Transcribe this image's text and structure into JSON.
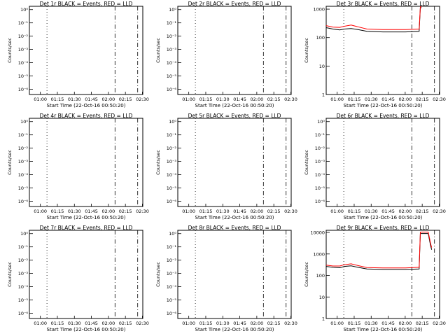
{
  "chart_data": [
    {
      "type": "line",
      "title": "Det 1r BLACK = Events, RED = LLD",
      "xlabel": "Start Time (22-Oct-16 00:50:20)",
      "ylabel": "Counts/sec",
      "x_tick_labels": [
        "01:00",
        "01:15",
        "01:30",
        "01:45",
        "02:00",
        "02:15",
        "02:30"
      ],
      "y_scale": "log",
      "y_tick_labels": [
        "10⁰",
        "10⁻¹",
        "10⁻²",
        "10⁻³",
        "10⁻⁴",
        "10⁻⁵",
        "10⁻⁶"
      ],
      "y_tick_values": [
        0,
        -1,
        -2,
        -3,
        -4,
        -5,
        -6
      ],
      "ylim": [
        -6.4,
        0.25
      ],
      "series": []
    },
    {
      "type": "line",
      "title": "Det 2r BLACK = Events, RED = LLD",
      "xlabel": "Start Time (22-Oct-16 00:50:20)",
      "ylabel": "Counts/sec",
      "x_tick_labels": [
        "01:00",
        "01:15",
        "01:30",
        "01:45",
        "02:00",
        "02:15",
        "02:30"
      ],
      "y_scale": "log",
      "y_tick_labels": [
        "10⁰",
        "10⁻¹",
        "10⁻²",
        "10⁻³",
        "10⁻⁴",
        "10⁻⁵",
        "10⁻⁶"
      ],
      "y_tick_values": [
        0,
        -1,
        -2,
        -3,
        -4,
        -5,
        -6
      ],
      "ylim": [
        -6.4,
        0.25
      ],
      "series": []
    },
    {
      "type": "line",
      "title": "Det 3r BLACK = Events, RED = LLD",
      "xlabel": "Start Time (22-Oct-16 00:50:20)",
      "ylabel": "Counts/sec",
      "x_tick_labels": [
        "01:00",
        "01:15",
        "01:30",
        "01:45",
        "02:00",
        "02:15",
        "02:30"
      ],
      "y_scale": "log",
      "y_tick_labels": [
        "1000",
        "100",
        "10",
        "1"
      ],
      "y_tick_values": [
        3,
        2,
        1,
        0
      ],
      "ylim": [
        0,
        3.1
      ],
      "series": [
        {
          "color": "#000000",
          "points": [
            [
              0,
              2.35
            ],
            [
              6,
              2.3
            ],
            [
              12,
              2.27
            ],
            [
              16,
              2.3
            ],
            [
              22,
              2.32
            ],
            [
              28,
              2.28
            ],
            [
              36,
              2.22
            ],
            [
              50,
              2.2
            ],
            [
              70,
              2.2
            ],
            [
              82,
              2.22
            ],
            [
              83,
              3.05
            ],
            [
              84,
              3.05
            ]
          ]
        },
        {
          "color": "#ff0000",
          "points": [
            [
              0,
              2.42
            ],
            [
              6,
              2.37
            ],
            [
              12,
              2.36
            ],
            [
              16,
              2.4
            ],
            [
              22,
              2.44
            ],
            [
              28,
              2.38
            ],
            [
              36,
              2.3
            ],
            [
              50,
              2.28
            ],
            [
              70,
              2.28
            ],
            [
              82,
              2.3
            ],
            [
              83,
              3.08
            ],
            [
              84,
              3.08
            ]
          ]
        }
      ]
    },
    {
      "type": "line",
      "title": "Det 4r BLACK = Events, RED = LLD",
      "xlabel": "Start Time (22-Oct-16 00:50:20)",
      "ylabel": "Counts/sec",
      "x_tick_labels": [
        "01:00",
        "01:15",
        "01:30",
        "01:45",
        "02:00",
        "02:15",
        "02:30"
      ],
      "y_scale": "log",
      "y_tick_labels": [
        "10⁰",
        "10⁻¹",
        "10⁻²",
        "10⁻³",
        "10⁻⁴",
        "10⁻⁵",
        "10⁻⁶"
      ],
      "y_tick_values": [
        0,
        -1,
        -2,
        -3,
        -4,
        -5,
        -6
      ],
      "ylim": [
        -6.4,
        0.25
      ],
      "series": []
    },
    {
      "type": "line",
      "title": "Det 5r BLACK = Events, RED = LLD",
      "xlabel": "Start Time (22-Oct-16 00:50:20)",
      "ylabel": "Counts/sec",
      "x_tick_labels": [
        "01:00",
        "01:15",
        "01:30",
        "01:45",
        "02:00",
        "02:15",
        "02:30"
      ],
      "y_scale": "log",
      "y_tick_labels": [
        "10⁰",
        "10⁻¹",
        "10⁻²",
        "10⁻³",
        "10⁻⁴",
        "10⁻⁵",
        "10⁻⁶"
      ],
      "y_tick_values": [
        0,
        -1,
        -2,
        -3,
        -4,
        -5,
        -6
      ],
      "ylim": [
        -6.4,
        0.25
      ],
      "series": []
    },
    {
      "type": "line",
      "title": "Det 6r BLACK = Events, RED = LLD",
      "xlabel": "Start Time (22-Oct-16 00:50:20)",
      "ylabel": "Counts/sec",
      "x_tick_labels": [
        "01:00",
        "01:15",
        "01:30",
        "01:45",
        "02:00",
        "02:15",
        "02:30"
      ],
      "y_scale": "log",
      "y_tick_labels": [
        "10⁰",
        "10⁻¹",
        "10⁻²",
        "10⁻³",
        "10⁻⁴",
        "10⁻⁵",
        "10⁻⁶"
      ],
      "y_tick_values": [
        0,
        -1,
        -2,
        -3,
        -4,
        -5,
        -6
      ],
      "ylim": [
        -6.4,
        0.25
      ],
      "series": []
    },
    {
      "type": "line",
      "title": "Det 7r BLACK = Events, RED = LLD",
      "xlabel": "Start Time (22-Oct-16 00:50:20)",
      "ylabel": "Counts/sec",
      "x_tick_labels": [
        "01:00",
        "01:15",
        "01:30",
        "01:45",
        "02:00",
        "02:15",
        "02:30"
      ],
      "y_scale": "log",
      "y_tick_labels": [
        "10⁰",
        "10⁻¹",
        "10⁻²",
        "10⁻³",
        "10⁻⁴",
        "10⁻⁵",
        "10⁻⁶"
      ],
      "y_tick_values": [
        0,
        -1,
        -2,
        -3,
        -4,
        -5,
        -6
      ],
      "ylim": [
        -6.4,
        0.25
      ],
      "series": []
    },
    {
      "type": "line",
      "title": "Det 8r BLACK = Events, RED = LLD",
      "xlabel": "Start Time (22-Oct-16 00:50:20)",
      "ylabel": "Counts/sec",
      "x_tick_labels": [
        "01:00",
        "01:15",
        "01:30",
        "01:45",
        "02:00",
        "02:15",
        "02:30"
      ],
      "y_scale": "log",
      "y_tick_labels": [
        "10⁰",
        "10⁻¹",
        "10⁻²",
        "10⁻³",
        "10⁻⁴",
        "10⁻⁵",
        "10⁻⁶"
      ],
      "y_tick_values": [
        0,
        -1,
        -2,
        -3,
        -4,
        -5,
        -6
      ],
      "ylim": [
        -6.4,
        0.25
      ],
      "series": []
    },
    {
      "type": "line",
      "title": "Det 9r BLACK = Events, RED = LLD",
      "xlabel": "Start Time (22-Oct-16 00:50:20)",
      "ylabel": "Counts/sec",
      "x_tick_labels": [
        "01:00",
        "01:15",
        "01:30",
        "01:45",
        "02:00",
        "02:15",
        "02:30"
      ],
      "y_scale": "log",
      "y_tick_labels": [
        "10000",
        "1000",
        "100",
        "10",
        "1"
      ],
      "y_tick_values": [
        4,
        3,
        2,
        1,
        0
      ],
      "ylim": [
        0,
        4.1
      ],
      "series": [
        {
          "color": "#000000",
          "points": [
            [
              0,
              2.42
            ],
            [
              6,
              2.38
            ],
            [
              12,
              2.36
            ],
            [
              16,
              2.42
            ],
            [
              22,
              2.45
            ],
            [
              28,
              2.38
            ],
            [
              36,
              2.3
            ],
            [
              50,
              2.28
            ],
            [
              70,
              2.28
            ],
            [
              82,
              2.3
            ],
            [
              83,
              3.95
            ],
            [
              90,
              3.95
            ],
            [
              92,
              3.4
            ],
            [
              93,
              3.2
            ]
          ]
        },
        {
          "color": "#ff0000",
          "points": [
            [
              0,
              2.48
            ],
            [
              6,
              2.44
            ],
            [
              12,
              2.44
            ],
            [
              16,
              2.5
            ],
            [
              22,
              2.54
            ],
            [
              28,
              2.46
            ],
            [
              36,
              2.37
            ],
            [
              50,
              2.35
            ],
            [
              70,
              2.35
            ],
            [
              82,
              2.38
            ],
            [
              83,
              4.02
            ],
            [
              90,
              4.02
            ],
            [
              92,
              3.5
            ],
            [
              93,
              3.3
            ]
          ]
        }
      ]
    }
  ]
}
